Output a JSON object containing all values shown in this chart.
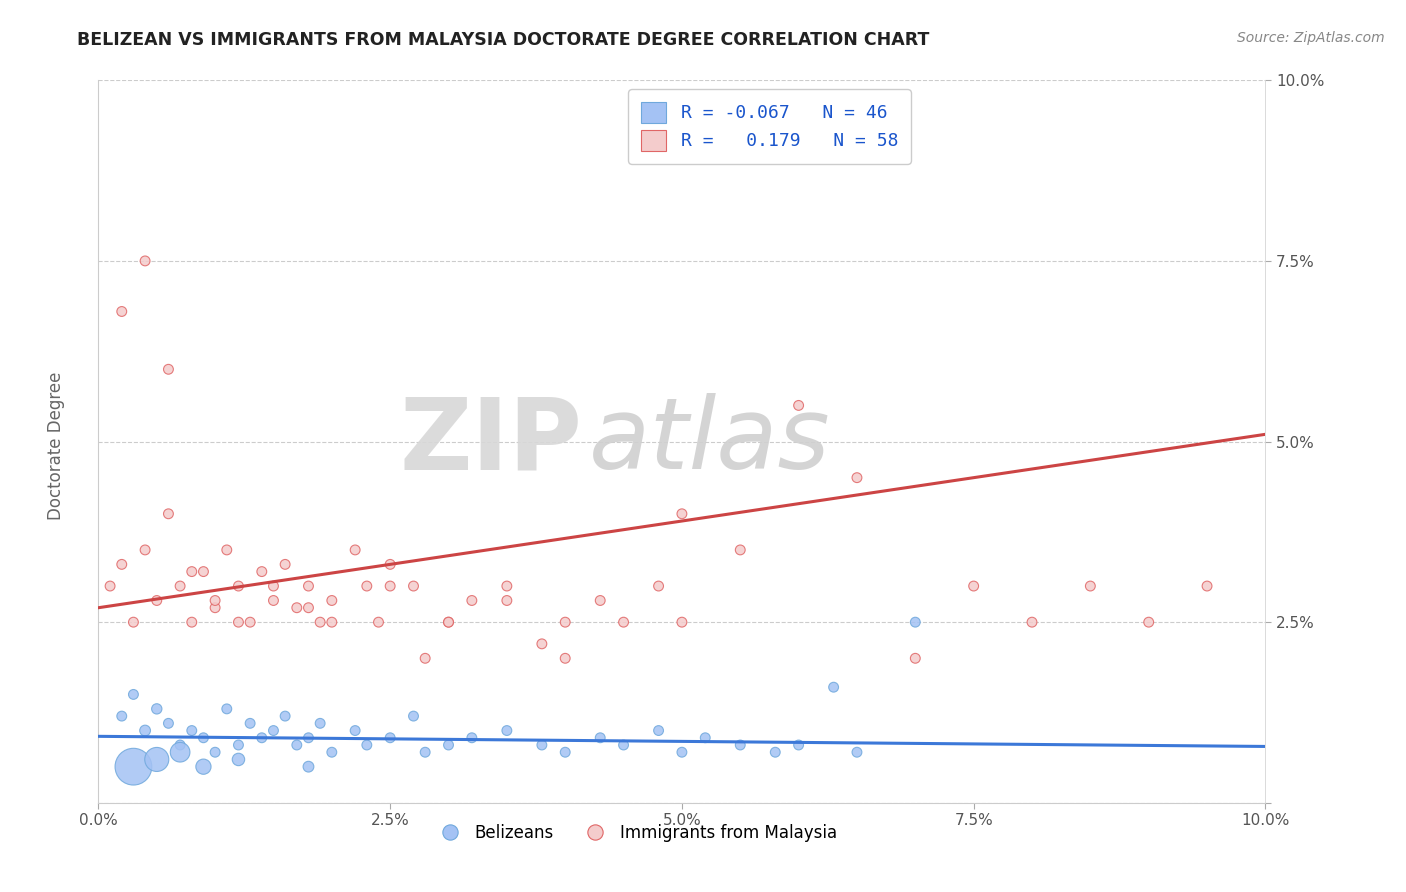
{
  "title": "BELIZEAN VS IMMIGRANTS FROM MALAYSIA DOCTORATE DEGREE CORRELATION CHART",
  "source": "Source: ZipAtlas.com",
  "ylabel": "Doctorate Degree",
  "xlim": [
    0.0,
    0.1
  ],
  "ylim": [
    0.0,
    0.1
  ],
  "xtick_labels": [
    "0.0%",
    "2.5%",
    "5.0%",
    "7.5%",
    "10.0%"
  ],
  "xtick_vals": [
    0.0,
    0.025,
    0.05,
    0.075,
    0.1
  ],
  "ytick_labels": [
    "",
    "2.5%",
    "5.0%",
    "7.5%",
    "10.0%"
  ],
  "ytick_vals": [
    0.0,
    0.025,
    0.05,
    0.075,
    0.1
  ],
  "belizean_color": "#a4c2f4",
  "belizean_edge": "#6fa8dc",
  "malaysia_color": "#f4cccc",
  "malaysia_edge": "#e06666",
  "trendline_blue": "#3c78d8",
  "trendline_pink": "#cc4444",
  "belizean_R": -0.067,
  "belizean_N": 46,
  "malaysia_R": 0.179,
  "malaysia_N": 58,
  "legend_label_1": "Belizeans",
  "legend_label_2": "Immigrants from Malaysia",
  "watermark_zip": "ZIP",
  "watermark_atlas": "atlas",
  "background_color": "#ffffff",
  "grid_color": "#cccccc",
  "title_color": "#222222",
  "legend_text_color": "#1a55cc",
  "belizean_scatter_x": [
    0.002,
    0.003,
    0.004,
    0.005,
    0.006,
    0.007,
    0.008,
    0.009,
    0.01,
    0.011,
    0.012,
    0.013,
    0.014,
    0.015,
    0.016,
    0.017,
    0.018,
    0.019,
    0.02,
    0.022,
    0.023,
    0.025,
    0.027,
    0.028,
    0.03,
    0.032,
    0.035,
    0.038,
    0.04,
    0.043,
    0.045,
    0.048,
    0.05,
    0.052,
    0.055,
    0.058,
    0.06,
    0.063,
    0.065,
    0.07,
    0.003,
    0.005,
    0.007,
    0.009,
    0.012,
    0.018
  ],
  "belizean_scatter_y": [
    0.012,
    0.015,
    0.01,
    0.013,
    0.011,
    0.008,
    0.01,
    0.009,
    0.007,
    0.013,
    0.008,
    0.011,
    0.009,
    0.01,
    0.012,
    0.008,
    0.009,
    0.011,
    0.007,
    0.01,
    0.008,
    0.009,
    0.012,
    0.007,
    0.008,
    0.009,
    0.01,
    0.008,
    0.007,
    0.009,
    0.008,
    0.01,
    0.007,
    0.009,
    0.008,
    0.007,
    0.008,
    0.016,
    0.007,
    0.025,
    0.005,
    0.006,
    0.007,
    0.005,
    0.006,
    0.005
  ],
  "belizean_scatter_size": [
    50,
    50,
    60,
    55,
    50,
    50,
    50,
    50,
    50,
    50,
    50,
    50,
    50,
    50,
    50,
    50,
    50,
    50,
    50,
    50,
    50,
    50,
    50,
    50,
    50,
    50,
    50,
    50,
    50,
    50,
    50,
    50,
    50,
    50,
    50,
    50,
    50,
    50,
    50,
    50,
    700,
    300,
    200,
    120,
    80,
    60
  ],
  "malaysia_scatter_x": [
    0.001,
    0.002,
    0.003,
    0.004,
    0.005,
    0.006,
    0.007,
    0.008,
    0.009,
    0.01,
    0.011,
    0.012,
    0.013,
    0.014,
    0.015,
    0.016,
    0.017,
    0.018,
    0.019,
    0.02,
    0.022,
    0.023,
    0.024,
    0.025,
    0.027,
    0.028,
    0.03,
    0.032,
    0.035,
    0.038,
    0.04,
    0.043,
    0.045,
    0.048,
    0.05,
    0.055,
    0.06,
    0.065,
    0.07,
    0.075,
    0.08,
    0.085,
    0.09,
    0.095,
    0.002,
    0.004,
    0.006,
    0.008,
    0.01,
    0.012,
    0.015,
    0.018,
    0.02,
    0.025,
    0.03,
    0.035,
    0.04,
    0.05
  ],
  "malaysia_scatter_y": [
    0.03,
    0.033,
    0.025,
    0.035,
    0.028,
    0.04,
    0.03,
    0.025,
    0.032,
    0.027,
    0.035,
    0.03,
    0.025,
    0.032,
    0.028,
    0.033,
    0.027,
    0.03,
    0.025,
    0.028,
    0.035,
    0.03,
    0.025,
    0.033,
    0.03,
    0.02,
    0.025,
    0.028,
    0.03,
    0.022,
    0.025,
    0.028,
    0.025,
    0.03,
    0.04,
    0.035,
    0.055,
    0.045,
    0.02,
    0.03,
    0.025,
    0.03,
    0.025,
    0.03,
    0.068,
    0.075,
    0.06,
    0.032,
    0.028,
    0.025,
    0.03,
    0.027,
    0.025,
    0.03,
    0.025,
    0.028,
    0.02,
    0.025
  ],
  "malaysia_scatter_size": [
    50,
    50,
    50,
    50,
    50,
    50,
    50,
    50,
    50,
    50,
    50,
    50,
    50,
    50,
    50,
    50,
    50,
    50,
    50,
    50,
    50,
    50,
    50,
    50,
    50,
    50,
    50,
    50,
    50,
    50,
    50,
    50,
    50,
    50,
    50,
    50,
    50,
    50,
    50,
    50,
    50,
    50,
    50,
    50,
    50,
    50,
    50,
    50,
    50,
    50,
    50,
    50,
    50,
    50,
    50,
    50,
    50,
    50
  ],
  "trendline_belizean_x0": 0.0,
  "trendline_belizean_x1": 0.1,
  "trendline_belizean_y0": 0.0092,
  "trendline_belizean_y1": 0.0078,
  "trendline_malaysia_x0": 0.0,
  "trendline_malaysia_x1": 0.1,
  "trendline_malaysia_y0": 0.027,
  "trendline_malaysia_y1": 0.051
}
